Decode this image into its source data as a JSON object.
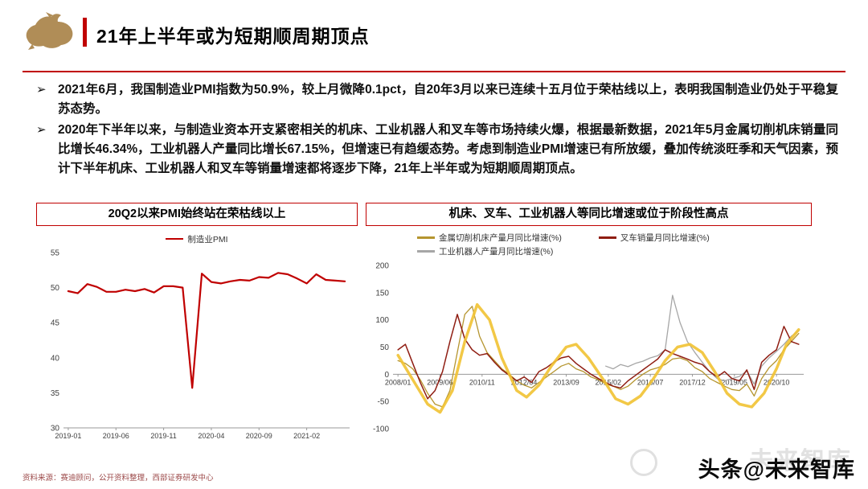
{
  "page": {
    "title": "21年上半年或为短期顺周期顶点",
    "bullet_marker": "➢",
    "accent_color": "#c00000"
  },
  "bullets": [
    "2021年6月，我国制造业PMI指数为50.9%，较上月微降0.1pct，自20年3月以来已连续十五月位于荣枯线以上，表明我国制造业仍处于平稳复苏态势。",
    "2020年下半年以来，与制造业资本开支紧密相关的机床、工业机器人和叉车等市场持续火爆，根据最新数据，2021年5月金属切削机床销量同比增长46.34%，工业机器人产量同比增长67.15%，但增速已有趋缓态势。考虑到制造业PMI增速已有所放缓，叠加传统淡旺季和天气因素，预计下半年机床、工业机器人和叉车等销量增速都将逐步下降，21年上半年或为短期顺周期顶点。"
  ],
  "footer": {
    "source": "资料来源：赛迪顾问，公开资料整理，西部证券研发中心",
    "watermark_main": "头条@未来智库",
    "watermark_ghost": "未来智库"
  },
  "chart_data": [
    {
      "type": "line",
      "title": "20Q2以来PMI始终站在荣枯线以上",
      "ylim": [
        30,
        55
      ],
      "yticks": [
        30,
        35,
        40,
        45,
        50,
        55
      ],
      "xlim": [
        -0.5,
        29.5
      ],
      "xticks": [
        0,
        5,
        10,
        15,
        20,
        25
      ],
      "x_labels": [
        "2019-01",
        "2019-06",
        "2019-11",
        "2020-04",
        "2020-09",
        "2021-02"
      ],
      "axis_y": 30,
      "legend": [
        {
          "label": "制造业PMI",
          "color": "#c00000"
        }
      ],
      "series": [
        {
          "name": "制造业PMI",
          "color": "#c00000",
          "width": 2.2,
          "values": [
            49.5,
            49.2,
            50.5,
            50.1,
            49.4,
            49.4,
            49.7,
            49.5,
            49.8,
            49.3,
            50.2,
            50.2,
            50.0,
            35.7,
            52.0,
            50.8,
            50.6,
            50.9,
            51.1,
            51.0,
            51.5,
            51.4,
            52.1,
            51.9,
            51.3,
            50.6,
            51.9,
            51.1,
            51.0,
            50.9
          ]
        }
      ]
    },
    {
      "type": "line",
      "title": "机床、叉车、工业机器人等同比增速或位于阶段性高点",
      "ylim": [
        -100,
        200
      ],
      "yticks": [
        -100,
        -50,
        0,
        50,
        100,
        150,
        200
      ],
      "xlim": [
        -2,
        164
      ],
      "xticks": [
        0,
        17,
        34,
        51,
        68,
        85,
        102,
        119,
        136,
        153
      ],
      "x_labels": [
        "2008/01",
        "2009/06",
        "2010/11",
        "2012/04",
        "2013/09",
        "2015/02",
        "2016/07",
        "2017/12",
        "2019/05",
        "2020/10"
      ],
      "axis_y": 0,
      "legend": [
        {
          "label": "金属切削机床产量月同比增速(%)",
          "color": "#b5952f"
        },
        {
          "label": "叉车销量月同比增速(%)",
          "color": "#8f1d12"
        },
        {
          "label": "工业机器人产量月同比增速(%)",
          "color": "#a6a6a6"
        }
      ],
      "series": [
        {
          "name": "金属切削机床产量月同比增速(%)",
          "color": "#b5952f",
          "width": 1.3,
          "x_start": 0,
          "x_step": 3,
          "values": [
            25,
            20,
            10,
            -10,
            -35,
            -55,
            -60,
            -30,
            40,
            110,
            125,
            70,
            40,
            25,
            10,
            0,
            -12,
            -20,
            -25,
            -15,
            -5,
            5,
            15,
            20,
            10,
            5,
            -5,
            -10,
            -18,
            -22,
            -28,
            -22,
            -10,
            0,
            8,
            12,
            18,
            28,
            30,
            25,
            12,
            5,
            -8,
            -15,
            -22,
            -28,
            -30,
            -18,
            -40,
            -8,
            12,
            25,
            45,
            60,
            75
          ]
        },
        {
          "name": "工业机器人产量月同比增速(%)",
          "color": "#a6a6a6",
          "width": 1.3,
          "x_start": 84,
          "x_step": 3,
          "values": [
            15,
            10,
            18,
            14,
            20,
            24,
            30,
            34,
            45,
            145,
            95,
            60,
            40,
            22,
            5,
            -8,
            -12,
            -8,
            -4,
            6,
            -18,
            15,
            30,
            42,
            55,
            70,
            80
          ]
        },
        {
          "name": "叉车销量月同比增速(%)",
          "color": "#8f1d12",
          "width": 1.5,
          "x_start": 0,
          "x_step": 3,
          "values": [
            45,
            55,
            20,
            -15,
            -45,
            -30,
            5,
            60,
            110,
            65,
            45,
            35,
            38,
            22,
            8,
            -2,
            -12,
            -5,
            -15,
            5,
            12,
            22,
            30,
            33,
            20,
            10,
            0,
            -8,
            -15,
            -22,
            -25,
            -12,
            -2,
            8,
            18,
            28,
            45,
            38,
            33,
            28,
            22,
            18,
            5,
            -5,
            5,
            -8,
            -12,
            8,
            -28,
            22,
            35,
            45,
            88,
            60,
            55
          ]
        },
        {
          "name": "",
          "annotation": true,
          "color": "#f1c232",
          "width": 3.5,
          "opacity": 0.9,
          "x": [
            0,
            6,
            12,
            17,
            22,
            27,
            32,
            37,
            42,
            48,
            52,
            57,
            62,
            68,
            72,
            77,
            83,
            88,
            93,
            98,
            103,
            108,
            113,
            118,
            123,
            128,
            133,
            138,
            143,
            148,
            153,
            157,
            162
          ],
          "values": [
            35,
            -10,
            -55,
            -70,
            -30,
            60,
            128,
            100,
            30,
            -30,
            -42,
            -20,
            15,
            50,
            55,
            30,
            -10,
            -45,
            -55,
            -40,
            -10,
            25,
            50,
            55,
            40,
            5,
            -35,
            -55,
            -60,
            -35,
            10,
            55,
            82
          ]
        }
      ]
    }
  ]
}
